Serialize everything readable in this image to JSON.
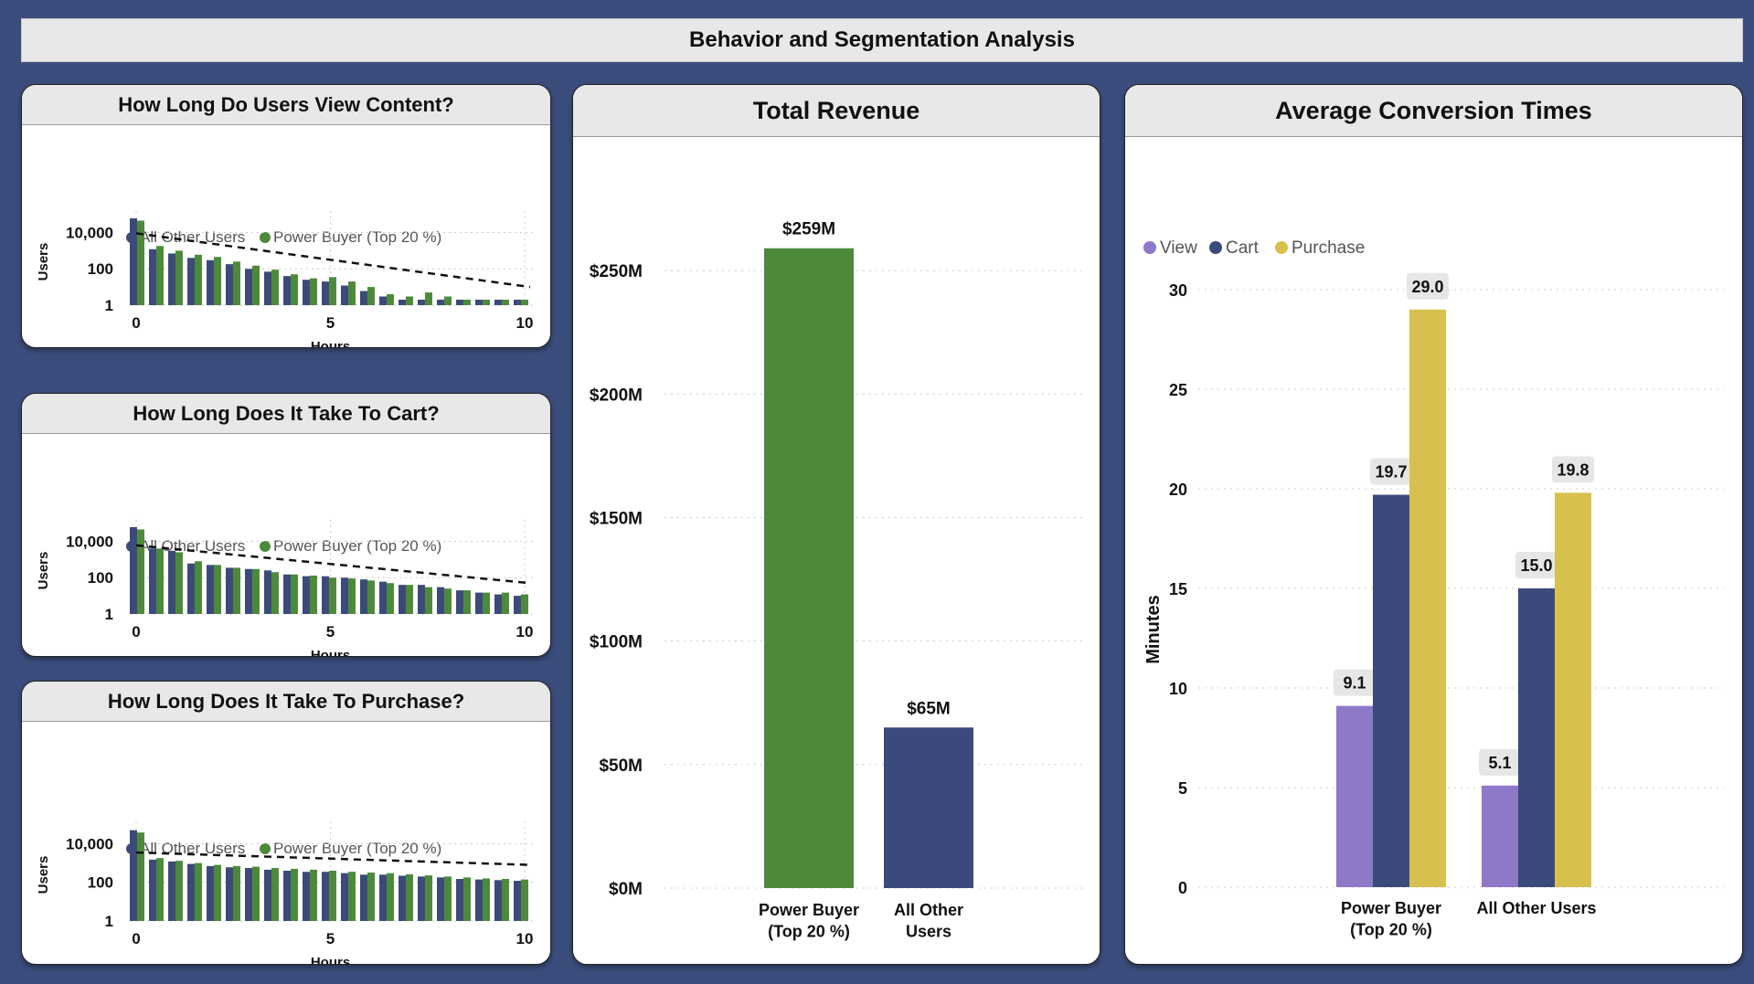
{
  "dashboard": {
    "title": "Behavior and Segmentation Analysis"
  },
  "colors": {
    "background": "#3b4d7c",
    "all_other_users": "#3b4a7a",
    "power_buyer": "#4c8a3a",
    "view": "#8e78c8",
    "cart": "#3b4a7a",
    "purchase": "#d7c04e"
  },
  "chart_data": [
    {
      "id": "view_content",
      "type": "bar",
      "title": "How Long Do Users View Content?",
      "xlabel": "Hours",
      "ylabel": "Users",
      "yscale": "log",
      "ylim": [
        1,
        60000
      ],
      "ytick_labels": [
        "1",
        "100",
        "10,000"
      ],
      "ytick_values": [
        1,
        100,
        10000
      ],
      "xlim": [
        0,
        10
      ],
      "xtick_labels": [
        "0",
        "5",
        "10"
      ],
      "xtick_values": [
        0,
        5,
        10
      ],
      "grid": "dotted",
      "legend": {
        "position": "top",
        "entries": [
          "All Other Users",
          "Power Buyer (Top 20 %)"
        ]
      },
      "trendline": {
        "style": "dashed",
        "y_start": 9000,
        "y_end": 10
      },
      "series": [
        {
          "name": "All Other Users",
          "color": "#3b4a7a",
          "x": [
            0,
            0.5,
            1,
            1.5,
            2,
            2.5,
            3,
            3.5,
            4,
            4.5,
            5,
            5.5,
            6,
            6.5,
            7,
            7.5,
            8,
            8.5,
            9,
            9.5,
            10
          ],
          "values": [
            60000,
            1200,
            700,
            400,
            300,
            180,
            100,
            70,
            40,
            25,
            20,
            12,
            6,
            3,
            2,
            2,
            2,
            2,
            2,
            2,
            2
          ]
        },
        {
          "name": "Power Buyer (Top 20 %)",
          "color": "#4c8a3a",
          "x": [
            0,
            0.5,
            1,
            1.5,
            2,
            2.5,
            3,
            3.5,
            4,
            4.5,
            5,
            5.5,
            6,
            6.5,
            7,
            7.5,
            8,
            8.5,
            9,
            9.5,
            10
          ],
          "values": [
            45000,
            1800,
            1000,
            600,
            450,
            250,
            150,
            90,
            50,
            30,
            35,
            20,
            10,
            4,
            3,
            5,
            3,
            2,
            2,
            2,
            2
          ]
        }
      ]
    },
    {
      "id": "cart_time",
      "type": "bar",
      "title": "How Long Does It Take To Cart?",
      "xlabel": "Hours",
      "ylabel": "Users",
      "yscale": "log",
      "ylim": [
        1,
        60000
      ],
      "ytick_labels": [
        "1",
        "100",
        "10,000"
      ],
      "ytick_values": [
        1,
        100,
        10000
      ],
      "xlim": [
        0,
        10
      ],
      "xtick_labels": [
        "0",
        "5",
        "10"
      ],
      "xtick_values": [
        0,
        5,
        10
      ],
      "grid": "dotted",
      "legend": {
        "position": "top",
        "entries": [
          "All Other Users",
          "Power Buyer (Top 20 %)"
        ]
      },
      "trendline": {
        "style": "dashed",
        "y_start": 6000,
        "y_end": 50
      },
      "series": [
        {
          "name": "All Other Users",
          "x": [
            0,
            0.5,
            1,
            1.5,
            2,
            2.5,
            3,
            3.5,
            4,
            4.5,
            5,
            5.5,
            6,
            6.5,
            7,
            7.5,
            8,
            8.5,
            9,
            9.5,
            10
          ],
          "values": [
            60000,
            4000,
            3000,
            600,
            500,
            350,
            300,
            250,
            150,
            120,
            120,
            100,
            80,
            60,
            40,
            40,
            30,
            20,
            15,
            12,
            10
          ]
        },
        {
          "name": "Power Buyer (Top 20 %)",
          "x": [
            0,
            0.5,
            1,
            1.5,
            2,
            2.5,
            3,
            3.5,
            4,
            4.5,
            5,
            5.5,
            6,
            6.5,
            7,
            7.5,
            8,
            8.5,
            9,
            9.5,
            10
          ],
          "values": [
            45000,
            4000,
            2500,
            800,
            500,
            350,
            300,
            200,
            150,
            130,
            100,
            90,
            70,
            50,
            40,
            30,
            25,
            20,
            15,
            15,
            12
          ]
        }
      ]
    },
    {
      "id": "purchase_time",
      "type": "bar",
      "title": "How Long Does It Take To Purchase?",
      "xlabel": "Hours",
      "ylabel": "Users",
      "yscale": "log",
      "ylim": [
        1,
        60000
      ],
      "ytick_labels": [
        "1",
        "100",
        "10,000"
      ],
      "ytick_values": [
        1,
        100,
        10000
      ],
      "xlim": [
        0,
        10
      ],
      "xtick_labels": [
        "0",
        "5",
        "10"
      ],
      "xtick_values": [
        0,
        5,
        10
      ],
      "grid": "dotted",
      "legend": {
        "position": "top",
        "entries": [
          "All Other Users",
          "Power Buyer (Top 20 %)"
        ]
      },
      "trendline": {
        "style": "dashed",
        "y_start": 3500,
        "y_end": 800
      },
      "series": [
        {
          "name": "All Other Users",
          "x": [
            0,
            0.5,
            1,
            1.5,
            2,
            2.5,
            3,
            3.5,
            4,
            4.5,
            5,
            5.5,
            6,
            6.5,
            7,
            7.5,
            8,
            8.5,
            9,
            9.5,
            10
          ],
          "values": [
            50000,
            1500,
            1200,
            900,
            700,
            600,
            550,
            450,
            400,
            350,
            350,
            300,
            250,
            250,
            220,
            200,
            180,
            150,
            140,
            130,
            120
          ]
        },
        {
          "name": "Power Buyer (Top 20 %)",
          "x": [
            0,
            0.5,
            1,
            1.5,
            2,
            2.5,
            3,
            3.5,
            4,
            4.5,
            5,
            5.5,
            6,
            6.5,
            7,
            7.5,
            8,
            8.5,
            9,
            9.5,
            10
          ],
          "values": [
            38000,
            1800,
            1300,
            1000,
            800,
            700,
            650,
            550,
            500,
            450,
            400,
            350,
            320,
            300,
            260,
            230,
            200,
            180,
            160,
            150,
            140
          ]
        }
      ]
    },
    {
      "id": "total_revenue",
      "type": "bar",
      "title": "Total Revenue",
      "categories": [
        "Power Buyer\n(Top 20 %)",
        "All Other\nUsers"
      ],
      "values": [
        259,
        65
      ],
      "data_labels": [
        "$259M",
        "$65M"
      ],
      "colors": [
        "#4c8a3a",
        "#3b4a7a"
      ],
      "ylim": [
        0,
        270
      ],
      "ytick_values": [
        0,
        50,
        100,
        150,
        200,
        250
      ],
      "ytick_labels": [
        "$0M",
        "$50M",
        "$100M",
        "$150M",
        "$200M",
        "$250M"
      ],
      "grid": "dotted"
    },
    {
      "id": "conversion_times",
      "type": "bar",
      "title": "Average Conversion Times",
      "ylabel": "Minutes",
      "categories": [
        "Power Buyer\n(Top 20 %)",
        "All Other Users"
      ],
      "series": [
        {
          "name": "View",
          "color": "#8e78c8",
          "values": [
            9.1,
            5.1
          ],
          "labels": [
            "9.1",
            "5.1"
          ]
        },
        {
          "name": "Cart",
          "color": "#3b4a7a",
          "values": [
            19.7,
            15.0
          ],
          "labels": [
            "19.7",
            "15.0"
          ]
        },
        {
          "name": "Purchase",
          "color": "#d7c04e",
          "values": [
            29.0,
            19.8
          ],
          "labels": [
            "29.0",
            "19.8"
          ]
        }
      ],
      "ylim": [
        0,
        30
      ],
      "ytick_values": [
        0,
        5,
        10,
        15,
        20,
        25,
        30
      ],
      "ytick_labels": [
        "0",
        "5",
        "10",
        "15",
        "20",
        "25",
        "30"
      ],
      "legend": {
        "position": "top-left"
      },
      "grid": "dotted"
    }
  ]
}
